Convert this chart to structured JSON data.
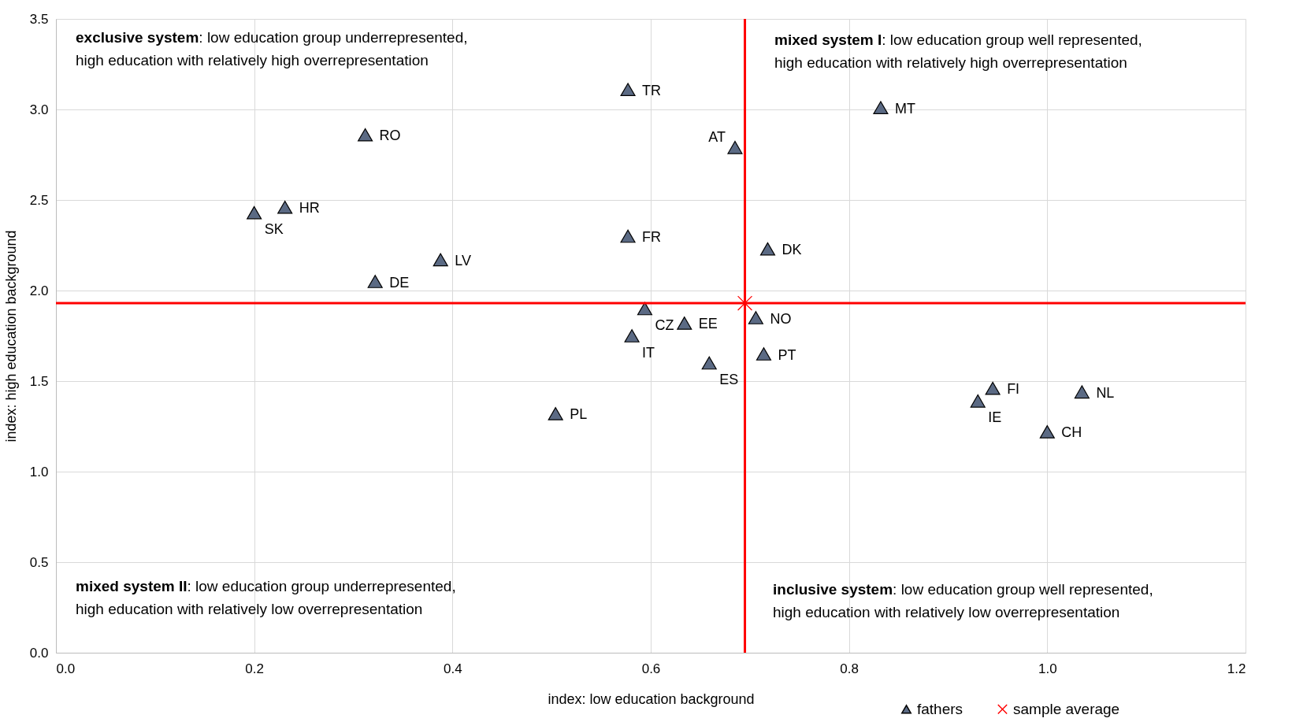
{
  "chart_data": {
    "type": "scatter",
    "xlabel": "index: low education background",
    "ylabel": "index: high education background",
    "xlim": [
      0,
      1.2
    ],
    "ylim": [
      0,
      3.5
    ],
    "xticks": [
      {
        "value": 0,
        "label": "0.0"
      },
      {
        "value": 0.2,
        "label": "0.2"
      },
      {
        "value": 0.4,
        "label": "0.4"
      },
      {
        "value": 0.6,
        "label": "0.6"
      },
      {
        "value": 0.8,
        "label": "0.8"
      },
      {
        "value": 1,
        "label": "1.0"
      },
      {
        "value": 1.2,
        "label": "1.2"
      }
    ],
    "yticks": [
      {
        "value": 0,
        "label": "0.0"
      },
      {
        "value": 0.5,
        "label": "0.5"
      },
      {
        "value": 1,
        "label": "1.0"
      },
      {
        "value": 1.5,
        "label": "1.5"
      },
      {
        "value": 2,
        "label": "2.0"
      },
      {
        "value": 2.5,
        "label": "2.5"
      },
      {
        "value": 3,
        "label": "3.0"
      },
      {
        "value": 3.5,
        "label": "3.5"
      }
    ],
    "grid": true,
    "legend": "bottom right",
    "series": [
      {
        "name": "fathers",
        "color": "#5b6a84",
        "marker": "triangle",
        "x": [
          0.577,
          0.832,
          0.312,
          0.685,
          0.231,
          0.2,
          0.577,
          0.718,
          0.388,
          0.322,
          0.594,
          0.706,
          0.634,
          0.581,
          0.714,
          0.659,
          0.945,
          1.035,
          0.93,
          1.0,
          0.504
        ],
        "values": [
          3.11,
          3.01,
          2.86,
          2.79,
          2.46,
          2.43,
          2.3,
          2.23,
          2.17,
          2.05,
          1.9,
          1.85,
          1.82,
          1.75,
          1.65,
          1.6,
          1.46,
          1.44,
          1.39,
          1.22,
          1.32
        ]
      },
      {
        "name": "sample average",
        "color": "#ff0000",
        "marker": "cross",
        "x": [
          0.695
        ],
        "values": [
          1.93
        ]
      }
    ],
    "ref_lines": [
      {
        "axis": "x",
        "value": 0.695,
        "color": "#ff0000"
      },
      {
        "axis": "y",
        "value": 1.93,
        "color": "#ff0000"
      }
    ],
    "annotations": [
      "exclusive system: low education group underrepresented, high education with relatively high overrepresentation",
      "mixed system I: low education group well represented, high education with relatively high overrepresentation",
      "mixed system II: low education group underrepresented, high education with relatively low overrepresentation",
      "inclusive system: low education group well represented, high education with relatively low overrepresentation",
      {
        "text": "TR",
        "x": 0.577,
        "y": 3.11
      },
      {
        "text": "MT",
        "x": 0.832,
        "y": 3.01
      },
      {
        "text": "RO",
        "x": 0.312,
        "y": 2.86
      },
      {
        "text": "AT",
        "x": 0.685,
        "y": 2.79
      },
      {
        "text": "HR",
        "x": 0.231,
        "y": 2.46
      },
      {
        "text": "SK",
        "x": 0.2,
        "y": 2.43
      },
      {
        "text": "FR",
        "x": 0.577,
        "y": 2.3
      },
      {
        "text": "DK",
        "x": 0.718,
        "y": 2.23
      },
      {
        "text": "LV",
        "x": 0.388,
        "y": 2.17
      },
      {
        "text": "DE",
        "x": 0.322,
        "y": 2.05
      },
      {
        "text": "CZ",
        "x": 0.594,
        "y": 1.9
      },
      {
        "text": "NO",
        "x": 0.706,
        "y": 1.85
      },
      {
        "text": "EE",
        "x": 0.634,
        "y": 1.82
      },
      {
        "text": "IT",
        "x": 0.581,
        "y": 1.75
      },
      {
        "text": "PT",
        "x": 0.714,
        "y": 1.65
      },
      {
        "text": "ES",
        "x": 0.659,
        "y": 1.6
      },
      {
        "text": "FI",
        "x": 0.945,
        "y": 1.46
      },
      {
        "text": "NL",
        "x": 1.035,
        "y": 1.44
      },
      {
        "text": "IE",
        "x": 0.93,
        "y": 1.39
      },
      {
        "text": "CH",
        "x": 1.0,
        "y": 1.22
      },
      {
        "text": "PL",
        "x": 0.504,
        "y": 1.32
      }
    ]
  }
}
